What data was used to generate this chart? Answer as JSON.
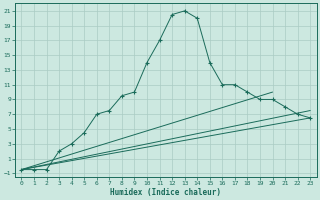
{
  "xlabel": "Humidex (Indice chaleur)",
  "xlim": [
    -0.5,
    23.5
  ],
  "ylim": [
    -1.5,
    22
  ],
  "xticks": [
    0,
    1,
    2,
    3,
    4,
    5,
    6,
    7,
    8,
    9,
    10,
    11,
    12,
    13,
    14,
    15,
    16,
    17,
    18,
    19,
    20,
    21,
    22,
    23
  ],
  "yticks": [
    -1,
    1,
    3,
    5,
    7,
    9,
    11,
    13,
    15,
    17,
    19,
    21
  ],
  "bg_color": "#cce8e0",
  "grid_color": "#aaccc4",
  "line_color": "#1a6b5a",
  "curve_x": [
    0,
    1,
    2,
    3,
    4,
    5,
    6,
    7,
    8,
    9,
    10,
    11,
    12,
    13,
    14,
    15,
    16,
    17,
    18,
    19,
    20,
    21,
    22,
    23
  ],
  "curve_y": [
    -0.5,
    -0.5,
    -0.5,
    2,
    3,
    4.5,
    7,
    7.5,
    9.5,
    10,
    14,
    17,
    20.5,
    21,
    20,
    14,
    11,
    11,
    10,
    9,
    9,
    8,
    7,
    6.5
  ],
  "line2_x": [
    0,
    20
  ],
  "line2_y": [
    -0.5,
    10.0
  ],
  "line3_x": [
    0,
    23
  ],
  "line3_y": [
    -0.5,
    7.5
  ],
  "line4_x": [
    0,
    23
  ],
  "line4_y": [
    -0.5,
    6.5
  ]
}
